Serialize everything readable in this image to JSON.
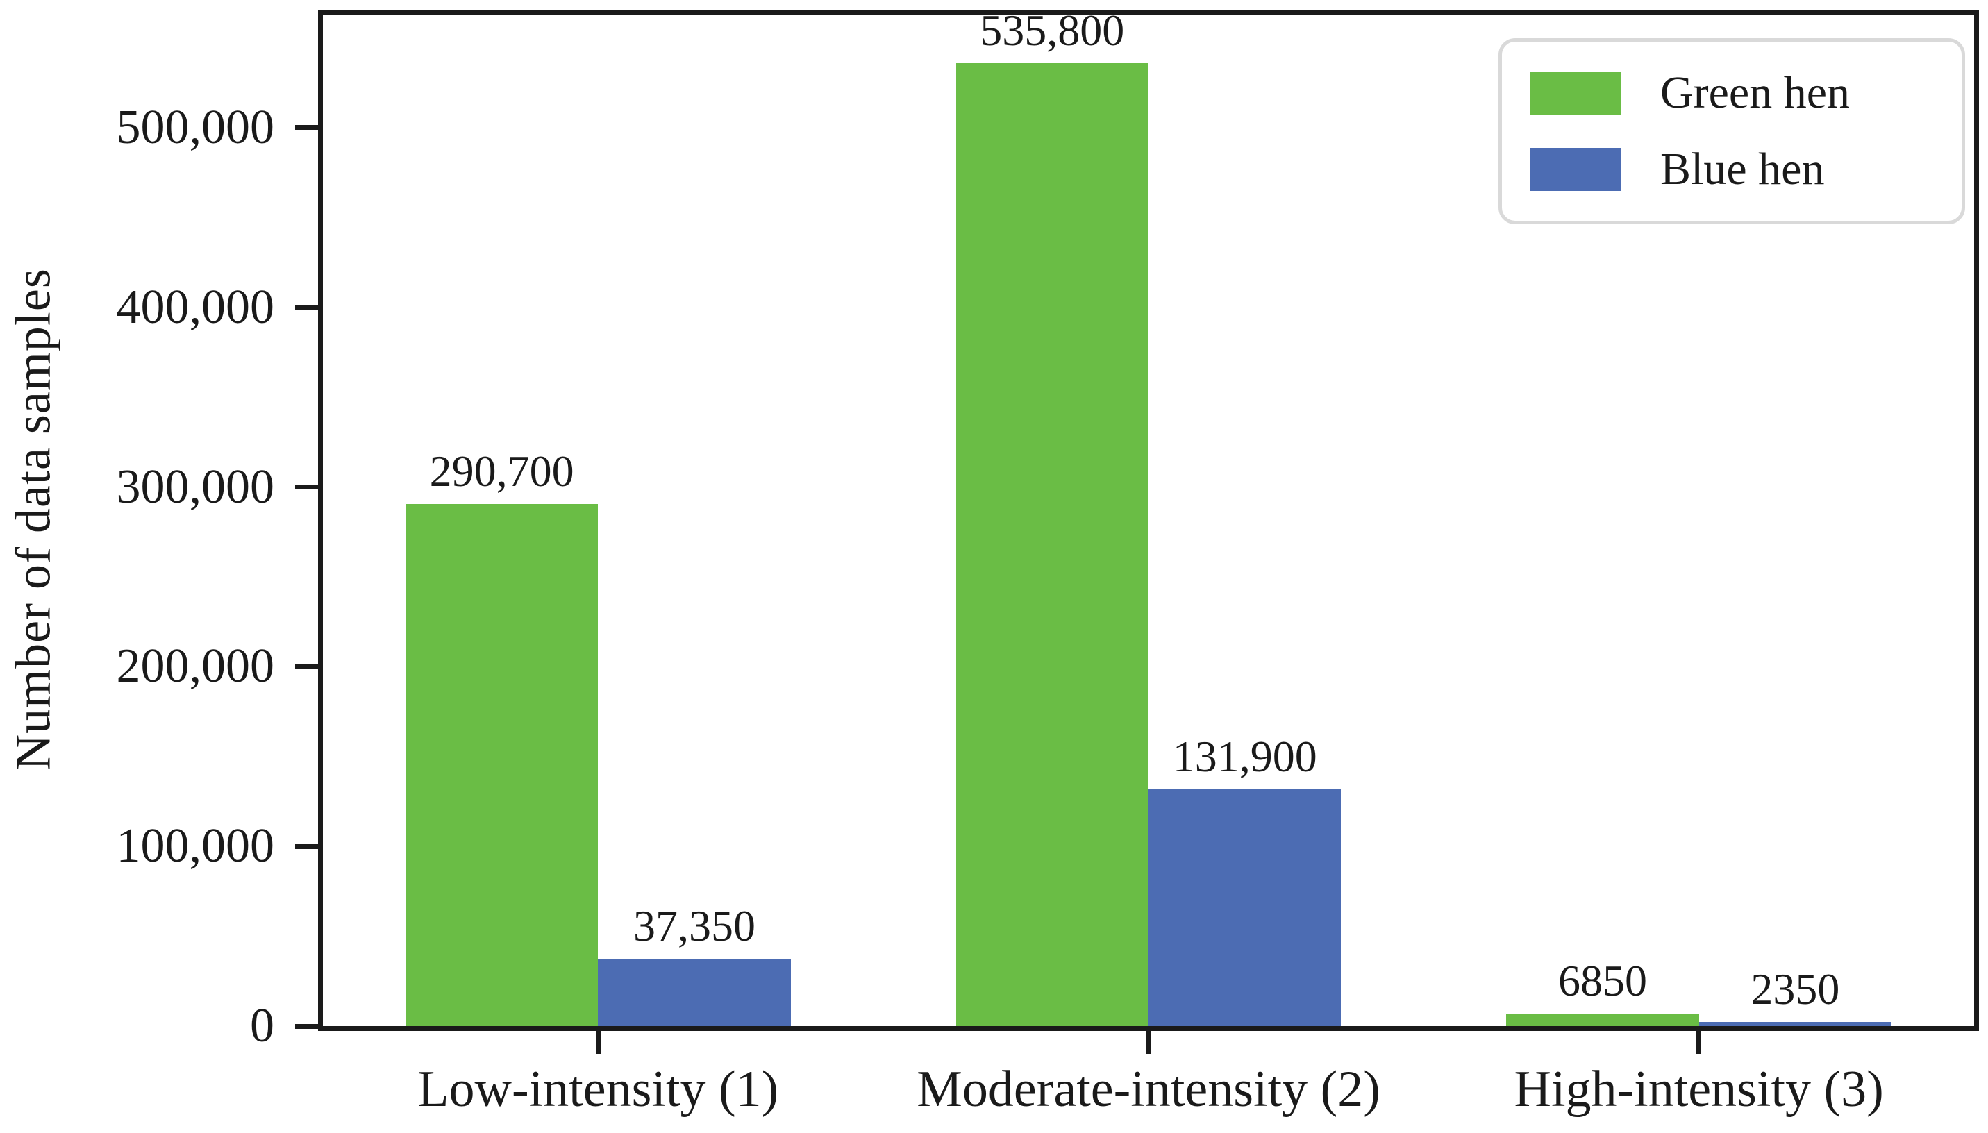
{
  "chart_data": {
    "type": "bar",
    "title": "",
    "xlabel": "",
    "ylabel": "Number of data samples",
    "categories": [
      "Low-intensity (1)",
      "Moderate-intensity (2)",
      "High-intensity (3)"
    ],
    "series": [
      {
        "name": "Green hen",
        "color": "#6abd45",
        "values": [
          290700,
          535800,
          6850
        ],
        "value_labels": [
          "290,700",
          "535,800",
          "6850"
        ]
      },
      {
        "name": "Blue hen",
        "color": "#4c6cb3",
        "values": [
          37350,
          131900,
          2350
        ],
        "value_labels": [
          "37,350",
          "131,900",
          "2350"
        ]
      }
    ],
    "yticks": [
      {
        "value": 0,
        "label": "0"
      },
      {
        "value": 100000,
        "label": "100,000"
      },
      {
        "value": 200000,
        "label": "200,000"
      },
      {
        "value": 300000,
        "label": "300,000"
      },
      {
        "value": 400000,
        "label": "400,000"
      },
      {
        "value": 500000,
        "label": "500,000"
      }
    ],
    "ylim": [
      0,
      562590
    ],
    "bar_width_frac": 0.35,
    "grid": false,
    "legend_position": "upper right",
    "frame_color": "#1a1a1a",
    "legend_border_color": "#d9d9d9"
  }
}
